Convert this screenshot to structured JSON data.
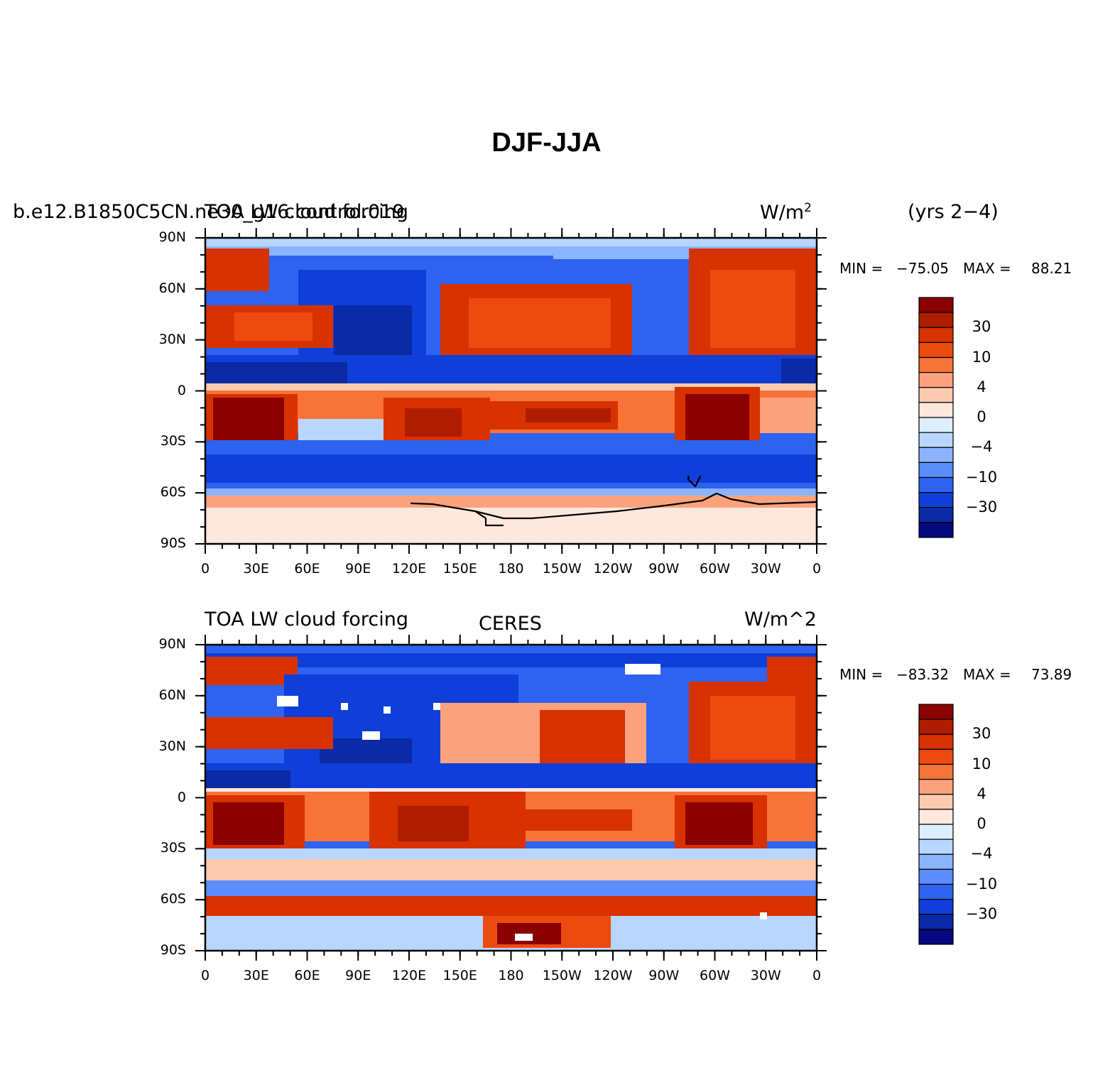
{
  "title": "DJF-JJA",
  "lat_labels": [
    "90N",
    "60N",
    "30N",
    "0",
    "30S",
    "60S",
    "90S"
  ],
  "lon_labels": [
    "0",
    "30E",
    "60E",
    "90E",
    "120E",
    "150E",
    "180",
    "150W",
    "120W",
    "90W",
    "60W",
    "30W",
    "0"
  ],
  "colorbar": {
    "levels": [
      "30",
      "10",
      "4",
      "0",
      "−4",
      "−10",
      "−30"
    ],
    "colors": [
      "#8b0000",
      "#b01c00",
      "#d83200",
      "#ec4b10",
      "#f6733a",
      "#fba27d",
      "#fdcab0",
      "#fee8dc",
      "#dceeff",
      "#b8d6ff",
      "#8ab4ff",
      "#5a8dff",
      "#2e63f0",
      "#0f3fd8",
      "#0a2aa6",
      "#05087e"
    ]
  },
  "panels": [
    {
      "left_title": "b.e12.B1850C5CN.ne30_g16.control.019",
      "left_title_overlay": "TOA LW cloud forcing",
      "right_title": "W/m",
      "right_title_sup": "2",
      "corner_note": "(yrs 2−4)",
      "min_label": "MIN =",
      "min_value": "−75.05",
      "max_label": "MAX =",
      "max_value": "88.21"
    },
    {
      "left_title": "TOA LW cloud forcing",
      "center_title": "CERES",
      "right_title": "W/m^2",
      "min_label": "MIN =",
      "min_value": "−83.32",
      "max_label": "MAX =",
      "max_value": "73.89"
    }
  ]
}
